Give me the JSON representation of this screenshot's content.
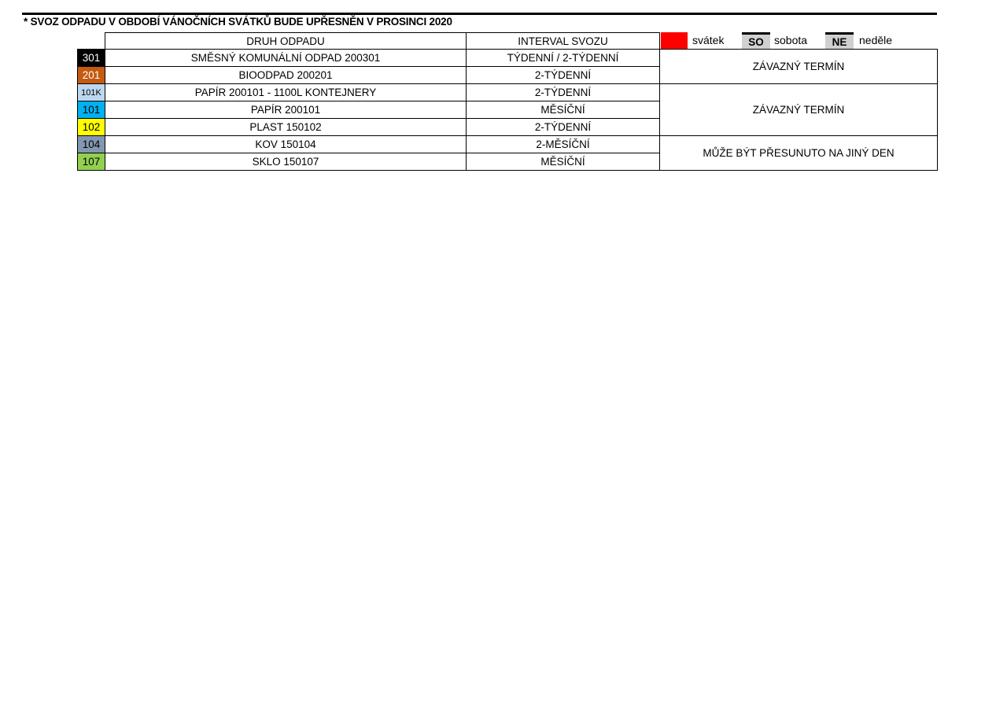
{
  "title": "* SVOZ ODPADU V OBDOBÍ VÁNOČNÍCH SVÁTKŮ BUDE UPŘESNĚN V PROSINCI 2020",
  "table": {
    "headers": {
      "type": "DRUH ODPADU",
      "interval": "INTERVAL SVOZU"
    },
    "rows": [
      {
        "code": "301",
        "color": "#000000",
        "text_color": "#ffffff",
        "type": "SMĚSNÝ KOMUNÁLNÍ ODPAD 200301",
        "interval": "TÝDENNÍ / 2-TÝDENNÍ"
      },
      {
        "code": "201",
        "color": "#c55a11",
        "text_color": "#ffffff",
        "type": "BIOODPAD 200201",
        "interval": "2-TÝDENNÍ"
      },
      {
        "code": "101K",
        "color": "#bdd7ee",
        "text_color": "#000000",
        "type": "PAPÍR 200101 - 1100L KONTEJNERY",
        "interval": "2-TÝDENNÍ"
      },
      {
        "code": "101",
        "color": "#00b0f0",
        "text_color": "#000000",
        "type": "PAPÍR 200101",
        "interval": "MĚSÍČNÍ"
      },
      {
        "code": "102",
        "color": "#ffff00",
        "text_color": "#000000",
        "type": "PLAST 150102",
        "interval": "2-TÝDENNÍ"
      },
      {
        "code": "104",
        "color": "#8497b0",
        "text_color": "#000000",
        "type": "KOV 150104",
        "interval": "2-MĚSÍČNÍ"
      },
      {
        "code": "107",
        "color": "#92d050",
        "text_color": "#000000",
        "type": "SKLO 150107",
        "interval": "MĚSÍČNÍ"
      }
    ],
    "notes": [
      "ZÁVAZNÝ TERMÍN",
      "ZÁVAZNÝ TERMÍN",
      "MŮŽE BÝT PŘESUNUTO NA JINÝ DEN"
    ]
  },
  "legend": {
    "holiday_color": "#ff0000",
    "holiday": "svátek",
    "saturday_abbr": "SO",
    "saturday": "sobota",
    "sunday_abbr": "NE",
    "sunday": "neděle"
  }
}
